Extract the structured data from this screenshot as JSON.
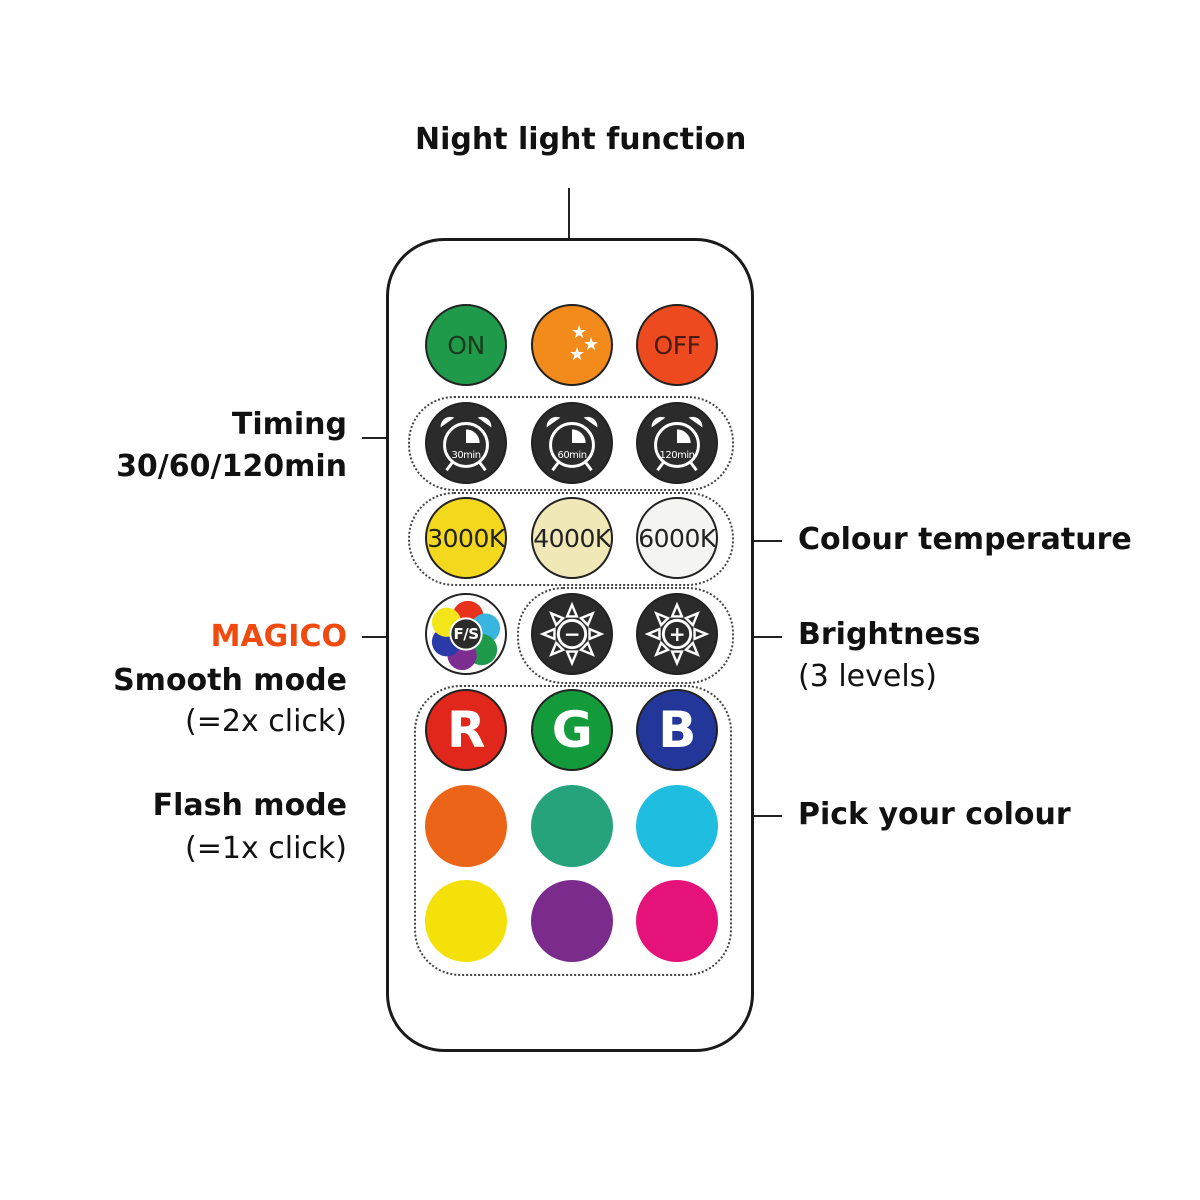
{
  "labels": {
    "night_light": "Night light function",
    "timing": "Timing",
    "timing_values": "30/60/120min",
    "magico": "MAGICO",
    "smooth_mode": "Smooth mode",
    "smooth_click": "(=2x click)",
    "flash_mode": "Flash mode",
    "flash_click": "(=1x click)",
    "colour_temperature": "Colour temperature",
    "brightness": "Brightness",
    "brightness_levels": "(3 levels)",
    "pick_colour": "Pick your colour"
  },
  "colors": {
    "magico": "#f04a0f"
  },
  "buttons": [
    {
      "id": "on",
      "label": "ON",
      "color": "#1f9a4a",
      "text_color": "#1c3a1c"
    },
    {
      "id": "night-light",
      "label": "",
      "icon": "moon-stars-icon",
      "color": "#f28a1c"
    },
    {
      "id": "off",
      "label": "OFF",
      "color": "#ee4a1f",
      "text_color": "#4a1a10"
    },
    {
      "id": "timer-30",
      "label": "30min",
      "icon": "alarm-clock-icon",
      "color": "#2b2b2b"
    },
    {
      "id": "timer-60",
      "label": "60min",
      "icon": "alarm-clock-icon",
      "color": "#2b2b2b"
    },
    {
      "id": "timer-120",
      "label": "120min",
      "icon": "alarm-clock-icon",
      "color": "#2b2b2b"
    },
    {
      "id": "temp-3000k",
      "label": "3000K",
      "color": "#f3d81e"
    },
    {
      "id": "temp-4000k",
      "label": "4000K",
      "color": "#f1e8b8"
    },
    {
      "id": "temp-6000k",
      "label": "6000K",
      "color": "#f4f4f2"
    },
    {
      "id": "fs-mode",
      "label": "F/S",
      "icon": "color-wheel-icon",
      "color": "#ffffff"
    },
    {
      "id": "brightness-down",
      "label": "−",
      "icon": "sun-icon",
      "color": "#2b2b2b"
    },
    {
      "id": "brightness-up",
      "label": "+",
      "icon": "sun-icon",
      "color": "#2b2b2b"
    },
    {
      "id": "red",
      "label": "R",
      "color": "#e1261c"
    },
    {
      "id": "green",
      "label": "G",
      "color": "#139a3a"
    },
    {
      "id": "blue",
      "label": "B",
      "color": "#23379a"
    },
    {
      "id": "orange",
      "label": "",
      "color": "#ec6417"
    },
    {
      "id": "teal",
      "label": "",
      "color": "#26a37d"
    },
    {
      "id": "cyan",
      "label": "",
      "color": "#1fbde0"
    },
    {
      "id": "yellow",
      "label": "",
      "color": "#f5e10a"
    },
    {
      "id": "purple",
      "label": "",
      "color": "#7a2b8c"
    },
    {
      "id": "magenta",
      "label": "",
      "color": "#e5127a"
    }
  ]
}
